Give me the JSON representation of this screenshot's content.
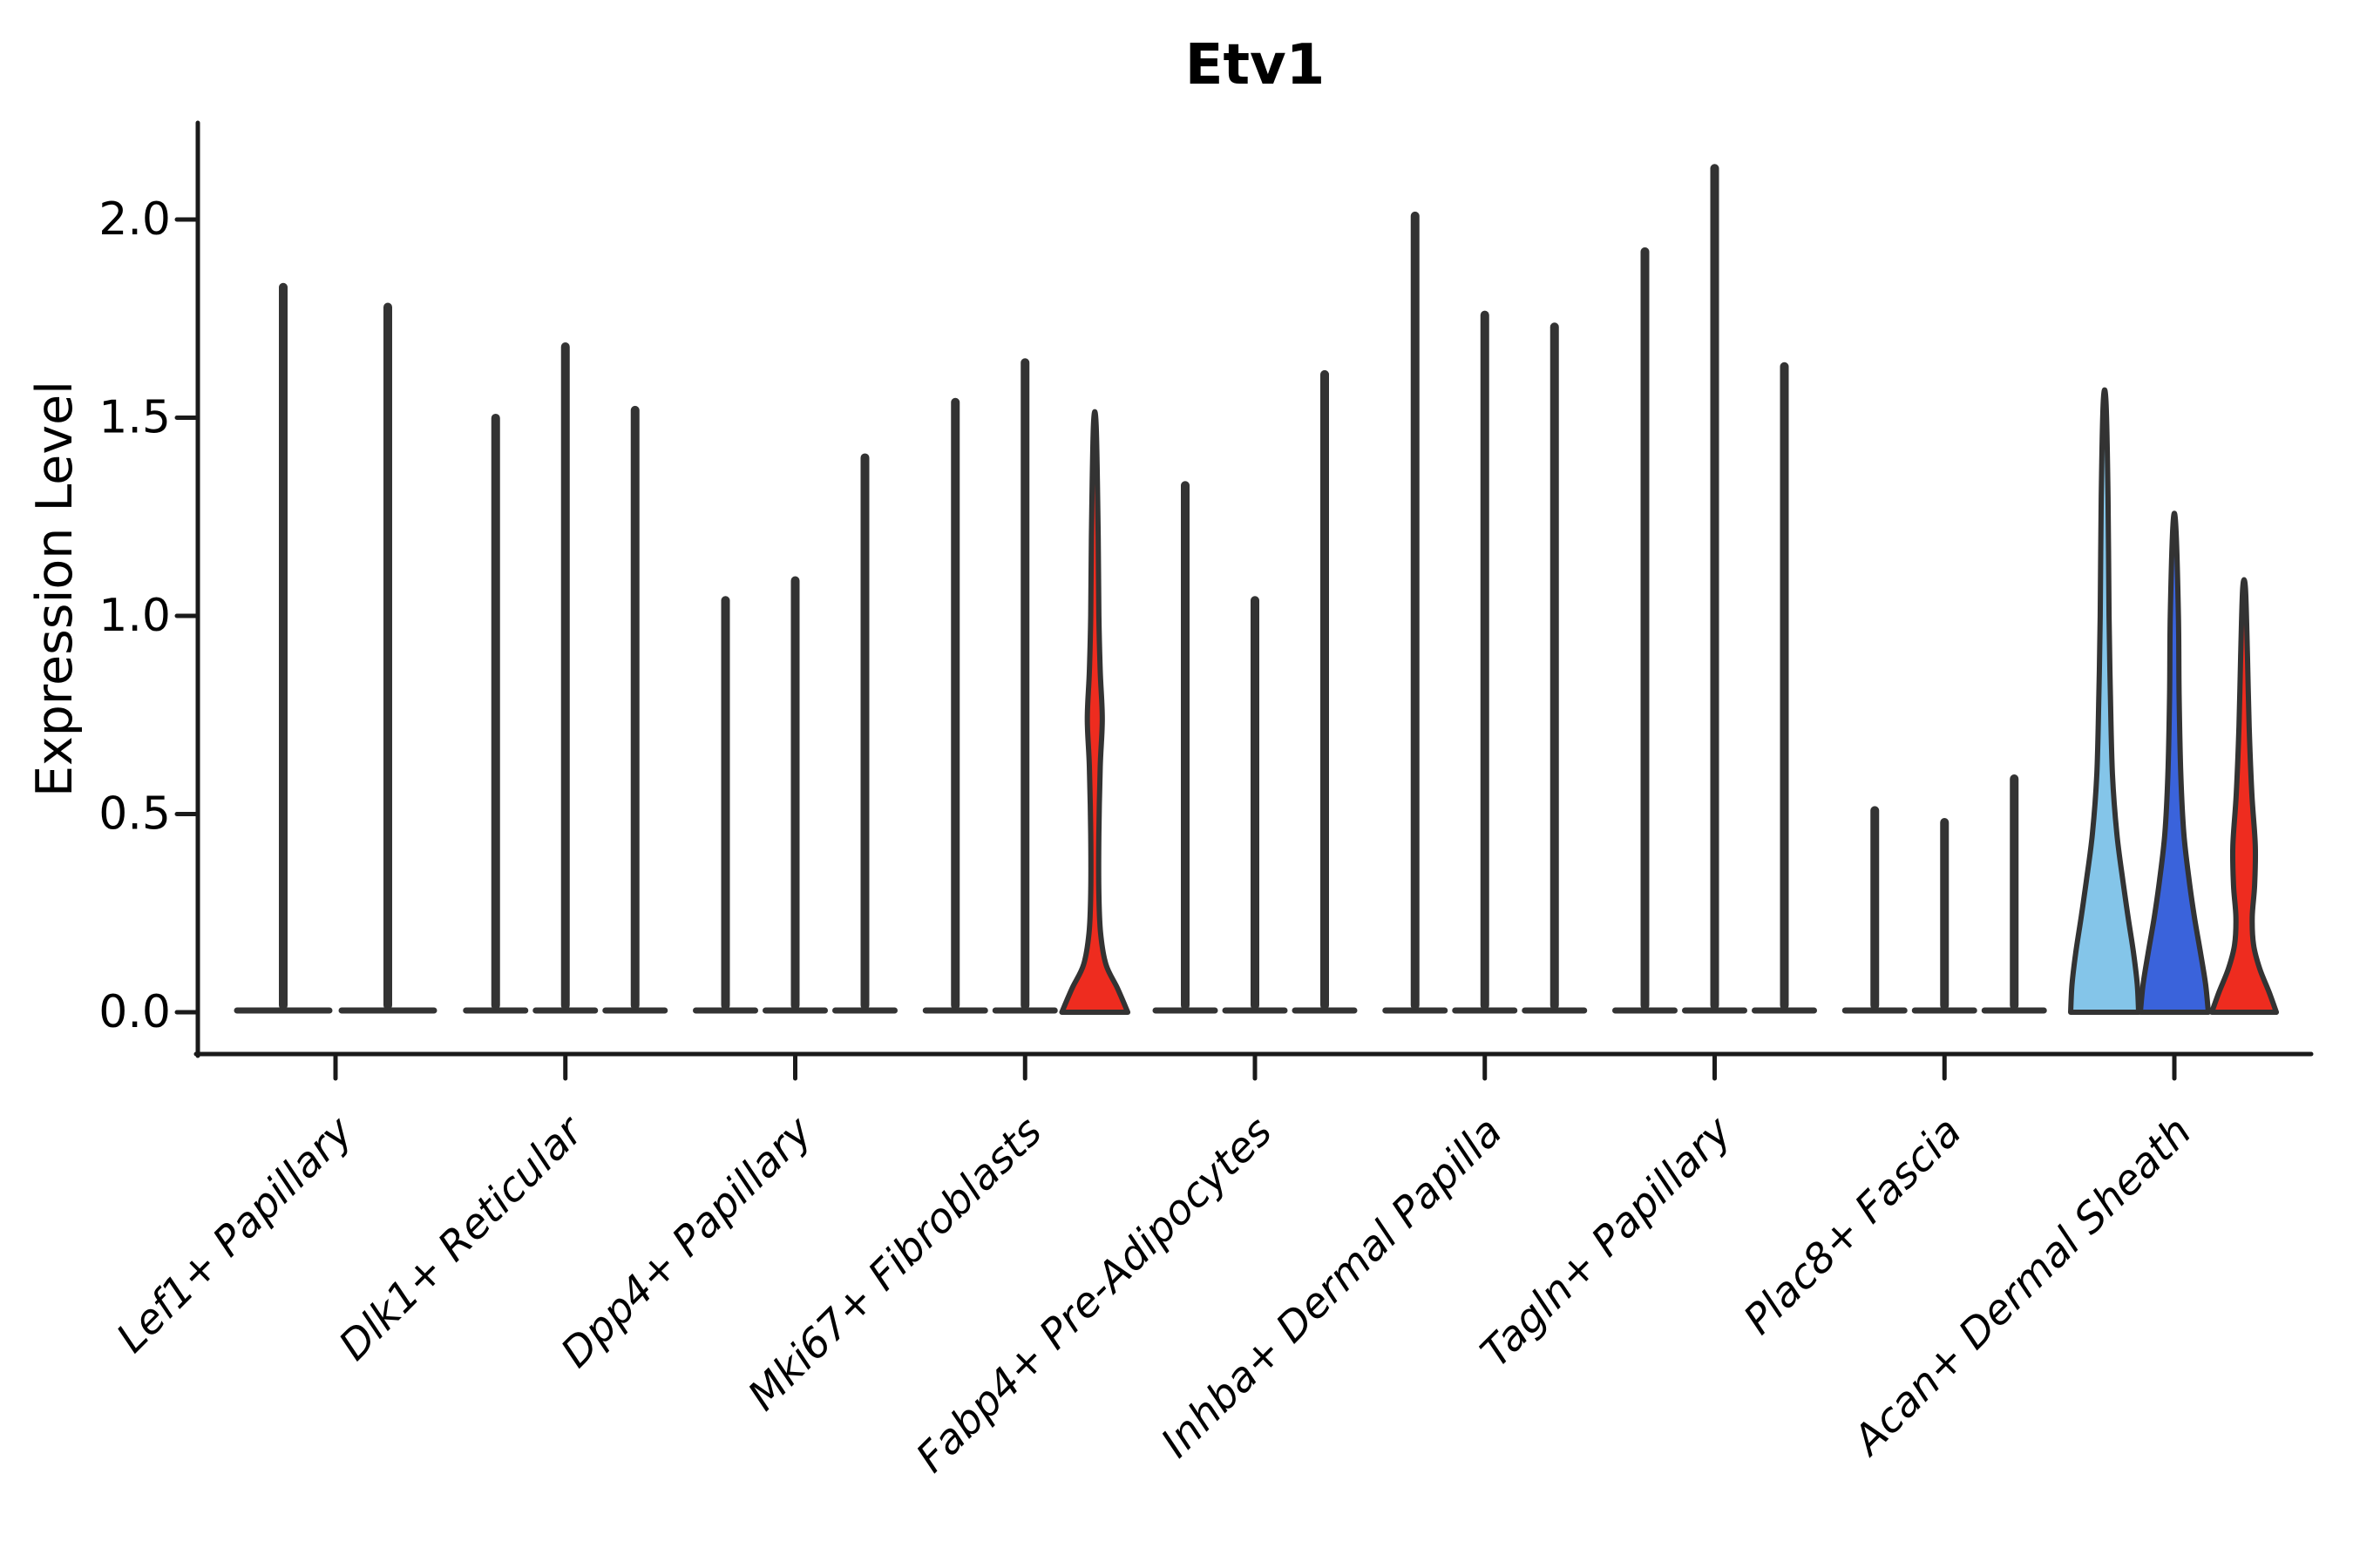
{
  "chart_data": {
    "type": "violin",
    "title": "Etv1",
    "ylabel": "Expression Level",
    "ytick_labels": [
      "0.0",
      "0.5",
      "1.0",
      "1.5",
      "2.0"
    ],
    "yticks": [
      0.0,
      0.5,
      1.0,
      1.5,
      2.0
    ],
    "ylim": [
      -0.11,
      2.25
    ],
    "grid": "off",
    "legend": "none",
    "categories": [
      "Lef1+ Papillary",
      "Dlk1+ Reticular",
      "Dpp4+ Papillary",
      "Mki67+ Fibroblasts",
      "Fabp4+ Pre-Adipocytes",
      "Inhba+ Dermal Papilla",
      "Tagln+ Papillary",
      "Plac8+ Fascia",
      "Acan+ Dermal Sheath"
    ],
    "colors": {
      "outline": "#333333",
      "white_fill": "#ffffff",
      "light_blue": "#84C5E9",
      "dark_blue": "#3A63DB",
      "red": "#EE2C1F"
    },
    "groups": [
      {
        "category": "Lef1+ Papillary",
        "violins": [
          {
            "max": 1.84,
            "fill": "white_fill",
            "shape": "spike"
          },
          {
            "max": 1.79,
            "fill": "white_fill",
            "shape": "spike"
          }
        ]
      },
      {
        "category": "Dlk1+ Reticular",
        "violins": [
          {
            "max": 1.51,
            "fill": "white_fill",
            "shape": "spike"
          },
          {
            "max": 1.69,
            "fill": "white_fill",
            "shape": "spike"
          },
          {
            "max": 1.53,
            "fill": "white_fill",
            "shape": "spike"
          }
        ]
      },
      {
        "category": "Dpp4+ Papillary",
        "violins": [
          {
            "max": 1.05,
            "fill": "white_fill",
            "shape": "spike"
          },
          {
            "max": 1.1,
            "fill": "white_fill",
            "shape": "spike"
          },
          {
            "max": 1.41,
            "fill": "white_fill",
            "shape": "spike"
          }
        ]
      },
      {
        "category": "Mki67+ Fibroblasts",
        "violins": [
          {
            "max": 1.55,
            "fill": "white_fill",
            "shape": "spike"
          },
          {
            "max": 1.65,
            "fill": "white_fill",
            "shape": "spike"
          },
          {
            "max": 1.48,
            "fill": "red",
            "shape": "profile",
            "profile": [
              [
                1.48,
                0.04
              ],
              [
                1.2,
                0.1
              ],
              [
                1.0,
                0.12
              ],
              [
                0.86,
                0.16
              ],
              [
                0.74,
                0.22
              ],
              [
                0.62,
                0.16
              ],
              [
                0.45,
                0.12
              ],
              [
                0.3,
                0.12
              ],
              [
                0.2,
                0.17
              ],
              [
                0.12,
                0.33
              ],
              [
                0.06,
                0.67
              ],
              [
                0.0,
                0.97
              ]
            ]
          }
        ]
      },
      {
        "category": "Fabp4+ Pre-Adipocytes",
        "violins": [
          {
            "max": 1.34,
            "fill": "white_fill",
            "shape": "spike"
          },
          {
            "max": 1.05,
            "fill": "white_fill",
            "shape": "spike"
          },
          {
            "max": 1.62,
            "fill": "white_fill",
            "shape": "spike"
          }
        ]
      },
      {
        "category": "Inhba+ Dermal Papilla",
        "violins": [
          {
            "max": 2.02,
            "fill": "white_fill",
            "shape": "spike"
          },
          {
            "max": 1.77,
            "fill": "white_fill",
            "shape": "spike"
          },
          {
            "max": 1.74,
            "fill": "white_fill",
            "shape": "spike"
          }
        ]
      },
      {
        "category": "Tagln+ Papillary",
        "violins": [
          {
            "max": 1.93,
            "fill": "white_fill",
            "shape": "spike"
          },
          {
            "max": 2.14,
            "fill": "white_fill",
            "shape": "spike"
          },
          {
            "max": 1.64,
            "fill": "white_fill",
            "shape": "spike"
          }
        ]
      },
      {
        "category": "Plac8+ Fascia",
        "violins": [
          {
            "max": 0.52,
            "fill": "white_fill",
            "shape": "spike"
          },
          {
            "max": 0.49,
            "fill": "white_fill",
            "shape": "spike"
          },
          {
            "max": 0.6,
            "fill": "white_fill",
            "shape": "spike"
          }
        ]
      },
      {
        "category": "Acan+ Dermal Sheath",
        "violins": [
          {
            "max": 1.54,
            "fill": "light_blue",
            "shape": "profile",
            "profile": [
              [
                1.54,
                0.04
              ],
              [
                1.3,
                0.1
              ],
              [
                1.0,
                0.13
              ],
              [
                0.8,
                0.17
              ],
              [
                0.6,
                0.23
              ],
              [
                0.45,
                0.36
              ],
              [
                0.33,
                0.54
              ],
              [
                0.24,
                0.69
              ],
              [
                0.15,
                0.85
              ],
              [
                0.07,
                0.96
              ],
              [
                0.0,
                1.0
              ]
            ]
          },
          {
            "max": 1.23,
            "fill": "dark_blue",
            "shape": "profile",
            "profile": [
              [
                1.23,
                0.04
              ],
              [
                1.0,
                0.12
              ],
              [
                0.8,
                0.14
              ],
              [
                0.6,
                0.19
              ],
              [
                0.45,
                0.28
              ],
              [
                0.33,
                0.44
              ],
              [
                0.24,
                0.59
              ],
              [
                0.15,
                0.77
              ],
              [
                0.07,
                0.92
              ],
              [
                0.0,
                1.0
              ]
            ]
          },
          {
            "max": 1.07,
            "fill": "red",
            "shape": "profile",
            "profile": [
              [
                1.07,
                0.04
              ],
              [
                0.9,
                0.1
              ],
              [
                0.72,
                0.15
              ],
              [
                0.55,
                0.23
              ],
              [
                0.42,
                0.33
              ],
              [
                0.32,
                0.31
              ],
              [
                0.24,
                0.24
              ],
              [
                0.17,
                0.28
              ],
              [
                0.11,
                0.46
              ],
              [
                0.05,
                0.74
              ],
              [
                0.0,
                0.95
              ]
            ]
          }
        ]
      }
    ]
  }
}
